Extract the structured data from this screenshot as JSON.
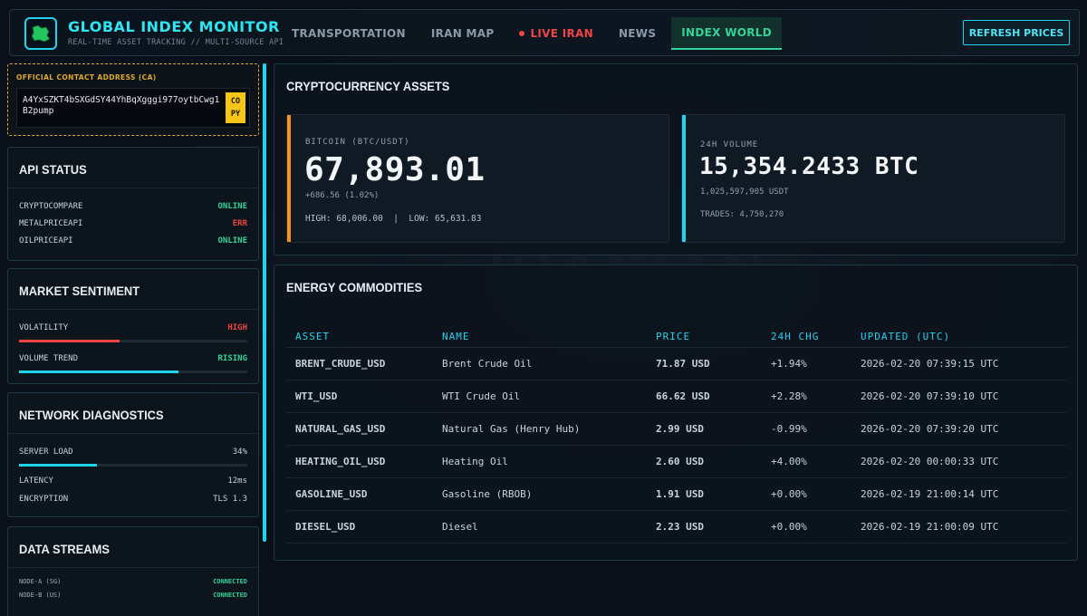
{
  "header": {
    "title": "GLOBAL INDEX MONITOR",
    "subtitle": "REAL-TIME ASSET TRACKING // MULTI-SOURCE API",
    "nav": [
      {
        "label": "TRANSPORTATION"
      },
      {
        "label": "IRAN MAP"
      },
      {
        "label": "LIVE IRAN",
        "live": true
      },
      {
        "label": "NEWS"
      },
      {
        "label": "INDEX WORLD",
        "active": true
      }
    ],
    "refresh_label": "REFRESH PRICES"
  },
  "contract": {
    "label": "OFFICIAL CONTACT ADDRESS (CA)",
    "address": "A4YxSZKT4bSXGdSY44YhBqXgggi977oytbCwg1B2pump",
    "copy_label": "COPY"
  },
  "api_status": {
    "title": "API STATUS",
    "items": [
      {
        "name": "CRYPTOCOMPARE",
        "status": "ONLINE"
      },
      {
        "name": "METALPRICEAPI",
        "status": "ERR"
      },
      {
        "name": "OILPRICEAPI",
        "status": "ONLINE"
      }
    ]
  },
  "sentiment": {
    "title": "MARKET SENTIMENT",
    "volatility_label": "VOLATILITY",
    "volatility_value": "HIGH",
    "volatility_level": 0.44,
    "volume_label": "VOLUME TREND",
    "volume_value": "RISING",
    "volume_level": 0.7
  },
  "network": {
    "title": "NETWORK DIAGNOSTICS",
    "server_load_label": "SERVER LOAD",
    "server_load_value": "34%",
    "server_load_level": 0.34,
    "latency_label": "LATENCY",
    "latency_value": "12ms",
    "encryption_label": "ENCRYPTION",
    "encryption_value": "TLS 1.3"
  },
  "streams": {
    "title": "DATA STREAMS",
    "items": [
      {
        "name": "NODE-A (SG)",
        "status": "CONNECTED"
      },
      {
        "name": "NODE-B (US)",
        "status": "CONNECTED"
      }
    ]
  },
  "crypto": {
    "title": "CRYPTOCURRENCY ASSETS",
    "btc": {
      "label": "BITCOIN (BTC/USDT)",
      "price": "67,893.01",
      "change": "+686.56 (1.02%)",
      "high_low": "HIGH: 68,006.00  |  LOW: 65,631.83"
    },
    "volume": {
      "label": "24H VOLUME",
      "value": "15,354.2433 BTC",
      "usdt": "1,025,597,905 USDT",
      "trades": "TRADES: 4,750,270"
    }
  },
  "energy": {
    "title": "ENERGY COMMODITIES",
    "columns": [
      "ASSET",
      "NAME",
      "PRICE",
      "24H CHG",
      "UPDATED (UTC)"
    ],
    "rows": [
      {
        "asset": "BRENT_CRUDE_USD",
        "name": "Brent Crude Oil",
        "price": "71.87 USD",
        "chg": "+1.94%",
        "updated": "2026-02-20 07:39:15 UTC"
      },
      {
        "asset": "WTI_USD",
        "name": "WTI Crude Oil",
        "price": "66.62 USD",
        "chg": "+2.28%",
        "updated": "2026-02-20 07:39:10 UTC"
      },
      {
        "asset": "NATURAL_GAS_USD",
        "name": "Natural Gas (Henry Hub)",
        "price": "2.99 USD",
        "chg": "-0.99%",
        "updated": "2026-02-20 07:39:20 UTC"
      },
      {
        "asset": "HEATING_OIL_USD",
        "name": "Heating Oil",
        "price": "2.60 USD",
        "chg": "+4.00%",
        "updated": "2026-02-20 00:00:33 UTC"
      },
      {
        "asset": "GASOLINE_USD",
        "name": "Gasoline (RBOB)",
        "price": "1.91 USD",
        "chg": "+0.00%",
        "updated": "2026-02-19 21:00:14 UTC"
      },
      {
        "asset": "DIESEL_USD",
        "name": "Diesel",
        "price": "2.23 USD",
        "chg": "+0.00%",
        "updated": "2026-02-19 21:00:09 UTC"
      }
    ]
  },
  "colors": {
    "accent": "#22d3ee",
    "positive": "#34d399",
    "negative": "#ef4444",
    "btc_accent": "#f7931a",
    "contract_border": "#e0a82e"
  },
  "icons": {
    "logo": "iran-map-icon"
  }
}
